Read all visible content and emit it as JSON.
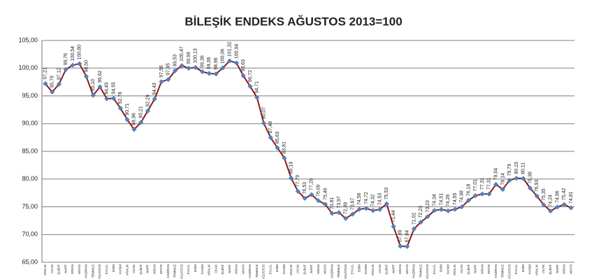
{
  "chart_data": {
    "type": "line",
    "title": "BİLEŞİK ENDEKS AĞUSTOS 2013=100",
    "categories": [
      "ARALIK",
      "OCAK",
      "ŞUBAT",
      "MART",
      "NİSAN",
      "MAYIS",
      "HAZİRAN",
      "TEMMUZ",
      "AĞUSTOS",
      "EYLÜL",
      "EKİM",
      "KASIM",
      "ARALIK",
      "OCAK",
      "ŞUBAT",
      "MART",
      "NİSAN",
      "MAYIS",
      "HAZİRAN",
      "TEMMUZ",
      "AĞUSTOS",
      "EYLÜL",
      "EKİM",
      "KASIM",
      "ARALIK",
      "OCAK",
      "ŞUBAT",
      "MART",
      "NİSAN",
      "MAYIS",
      "HAZİRAN",
      "TEMMUZ",
      "AĞUSTOS",
      "EYLÜL",
      "EKİM",
      "KASIM",
      "ARALIK",
      "OCAK",
      "ŞUBAT",
      "MART",
      "NİSAN",
      "MAYIS",
      "HAZİRAN",
      "TEMMUZ",
      "AĞUSTOS",
      "EYLÜL",
      "EKİM",
      "KASIM",
      "ARALIK",
      "OCAK",
      "ŞUBAT",
      "MART",
      "NİSAN",
      "MAYIS",
      "HAZİRAN",
      "TEMMUZ",
      "AĞUSTOS",
      "EYLÜL",
      "EKİM",
      "KASIM",
      "ARALIK",
      "OCAK",
      "ŞUBAT",
      "MART",
      "NİSAN",
      "MAYIS",
      "HAZİRAN",
      "TEMMUZ",
      "AĞUSTOS",
      "EYLÜL",
      "EKİM",
      "KASIM",
      "ARALIK",
      "OCAK",
      "ŞUBAT",
      "MART",
      "NİSAN",
      "MAYIS"
    ],
    "values": [
      97.21,
      95.7,
      97.12,
      99.76,
      100.54,
      100.8,
      98.5,
      95.1,
      96.62,
      94.49,
      94.55,
      92.78,
      90.71,
      88.96,
      90.21,
      92.29,
      94.43,
      97.56,
      97.95,
      99.53,
      100.47,
      99.99,
      100.13,
      99.36,
      99.06,
      98.96,
      100.06,
      101.32,
      100.94,
      98.63,
      96.72,
      94.71,
      90.07,
      87.49,
      85.63,
      83.81,
      80.19,
      77.79,
      76.53,
      77.2,
      76.09,
      75.46,
      73.81,
      73.97,
      72.89,
      73.67,
      74.56,
      74.72,
      74.32,
      74.53,
      75.53,
      71.44,
      67.89,
      67.84,
      71.02,
      72.23,
      73.23,
      74.34,
      74.51,
      74.28,
      74.55,
      74.98,
      76.18,
      77.01,
      77.31,
      77.31,
      79.04,
      78.14,
      79.79,
      80.15,
      80.11,
      78.38,
      76.93,
      75.35,
      74.24,
      74.96,
      75.42,
      74.81
    ],
    "value_labels": [
      "97,21",
      "95,70",
      "97,12",
      "99,76",
      "100,54",
      "100,80",
      "98,50",
      "95,10",
      "96,62",
      "94,49",
      "94,55",
      "92,78",
      "90,71",
      "88,96",
      "90,21",
      "92,29",
      "94,43",
      "97,56",
      "97,95",
      "99,53",
      "100,47",
      "99,99",
      "100,13",
      "99,36",
      "99,06",
      "98,96",
      "100,06",
      "101,32",
      "100,94",
      "98,63",
      "96,72",
      "94,71",
      "90,07",
      "87,49",
      "85,63",
      "83,81",
      "80,19",
      "77,79",
      "76,53",
      "77,20",
      "76,09",
      "75,46",
      "73,81",
      "73,97",
      "72,89",
      "73,67",
      "74,56",
      "74,72",
      "74,32",
      "74,53",
      "75,53",
      "71,44",
      "67,89",
      "67,84",
      "71,02",
      "72,23",
      "73,23",
      "74,34",
      "74,51",
      "74,28",
      "74,55",
      "74,98",
      "76,18",
      "77,01",
      "77,31",
      "77,31",
      "79,04",
      "78,14",
      "79,79",
      "80,15",
      "80,11",
      "78,38",
      "76,93",
      "75,35",
      "74,24",
      "74,96",
      "75,42",
      "74,81"
    ],
    "color": "#8b1c1c",
    "marker_color": "#4f81bd",
    "ylim": [
      65,
      105
    ],
    "yticks": [
      {
        "value": 65,
        "label": "65,00"
      },
      {
        "value": 70,
        "label": "70,00"
      },
      {
        "value": 75,
        "label": "75,00"
      },
      {
        "value": 80,
        "label": "80,00"
      },
      {
        "value": 85,
        "label": "85,00"
      },
      {
        "value": 90,
        "label": "90,00"
      },
      {
        "value": 95,
        "label": "95,00"
      },
      {
        "value": 100,
        "label": "100,00"
      },
      {
        "value": 105,
        "label": "105,00"
      }
    ],
    "grid": true
  }
}
